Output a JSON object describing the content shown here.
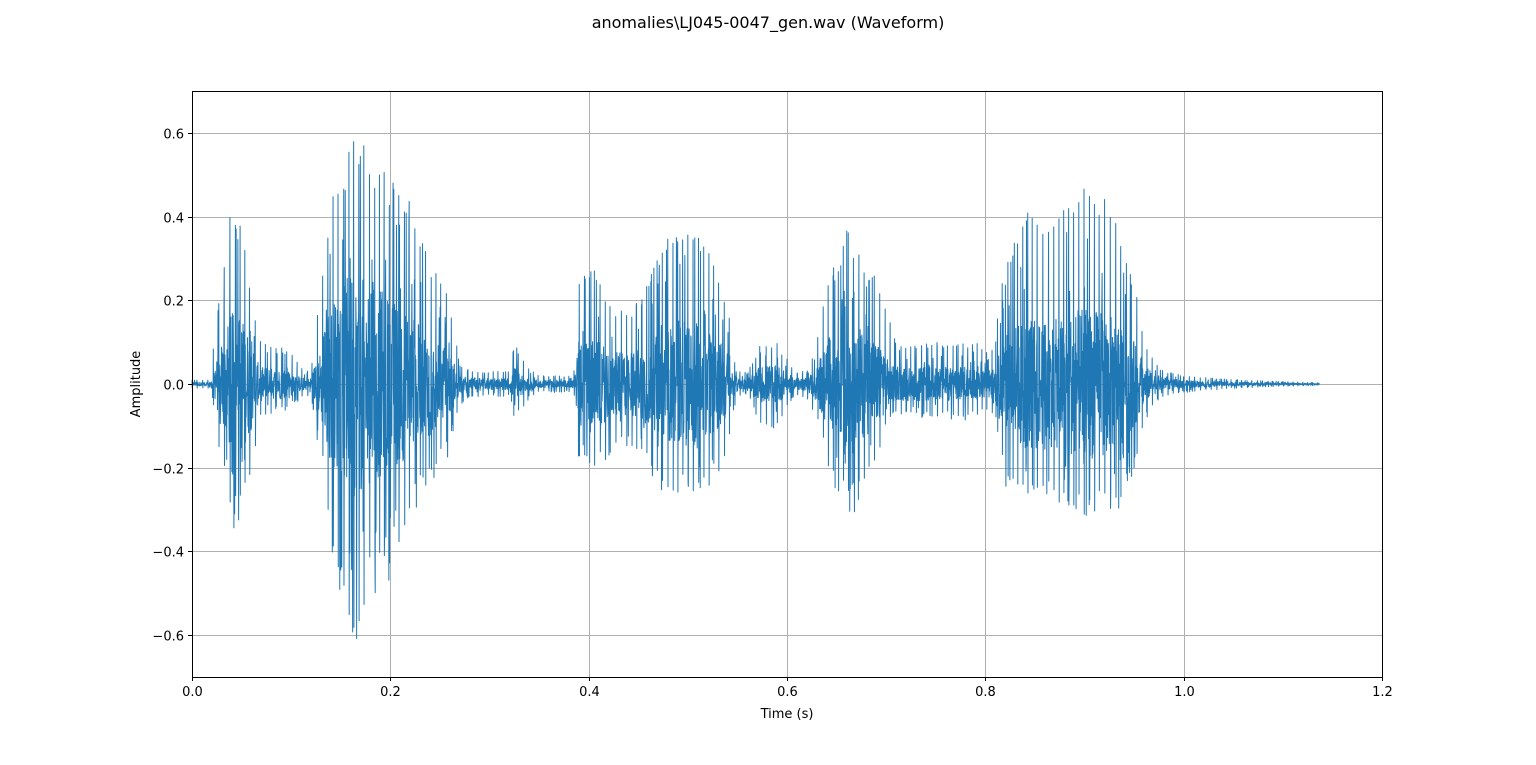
{
  "chart_data": {
    "type": "line",
    "title": "anomalies\\LJ045-0047_gen.wav (Waveform)",
    "xlabel": "Time (s)",
    "ylabel": "Amplitude",
    "xlim": [
      0,
      1.2
    ],
    "ylim": [
      -0.7,
      0.7
    ],
    "xticks": [
      0.0,
      0.2,
      0.4,
      0.6,
      0.8,
      1.0,
      1.2
    ],
    "xtick_labels": [
      "0.0",
      "0.2",
      "0.4",
      "0.6",
      "0.8",
      "1.0",
      "1.2"
    ],
    "yticks": [
      -0.6,
      -0.4,
      -0.2,
      0.0,
      0.2,
      0.4,
      0.6
    ],
    "ytick_labels": [
      "−0.6",
      "−0.4",
      "−0.2",
      "0.0",
      "0.2",
      "0.4",
      "0.6"
    ],
    "grid": true,
    "line_color": "#1f77b4",
    "duration": 1.137,
    "envelope_columns": [
      "time",
      "max",
      "min"
    ],
    "envelope": [
      [
        0.0,
        0.01,
        -0.01
      ],
      [
        0.02,
        0.01,
        -0.01
      ],
      [
        0.021,
        0.08,
        -0.05
      ],
      [
        0.03,
        0.25,
        -0.2
      ],
      [
        0.04,
        0.43,
        -0.33
      ],
      [
        0.05,
        0.42,
        -0.3
      ],
      [
        0.06,
        0.23,
        -0.25
      ],
      [
        0.065,
        0.13,
        -0.12
      ],
      [
        0.07,
        0.1,
        -0.08
      ],
      [
        0.08,
        0.09,
        -0.07
      ],
      [
        0.09,
        0.1,
        -0.06
      ],
      [
        0.1,
        0.08,
        -0.05
      ],
      [
        0.11,
        0.04,
        -0.03
      ],
      [
        0.12,
        0.03,
        -0.03
      ],
      [
        0.125,
        0.15,
        -0.12
      ],
      [
        0.13,
        0.2,
        -0.15
      ],
      [
        0.135,
        0.38,
        -0.32
      ],
      [
        0.14,
        0.45,
        -0.4
      ],
      [
        0.15,
        0.5,
        -0.48
      ],
      [
        0.16,
        0.6,
        -0.61
      ],
      [
        0.17,
        0.59,
        -0.57
      ],
      [
        0.18,
        0.55,
        -0.5
      ],
      [
        0.19,
        0.52,
        -0.48
      ],
      [
        0.2,
        0.49,
        -0.43
      ],
      [
        0.21,
        0.48,
        -0.38
      ],
      [
        0.22,
        0.45,
        -0.32
      ],
      [
        0.23,
        0.35,
        -0.27
      ],
      [
        0.24,
        0.3,
        -0.25
      ],
      [
        0.25,
        0.25,
        -0.17
      ],
      [
        0.26,
        0.2,
        -0.15
      ],
      [
        0.265,
        0.12,
        -0.1
      ],
      [
        0.27,
        0.05,
        -0.05
      ],
      [
        0.28,
        0.03,
        -0.03
      ],
      [
        0.32,
        0.03,
        -0.03
      ],
      [
        0.325,
        0.09,
        -0.09
      ],
      [
        0.33,
        0.08,
        -0.07
      ],
      [
        0.34,
        0.04,
        -0.03
      ],
      [
        0.35,
        0.02,
        -0.02
      ],
      [
        0.385,
        0.02,
        -0.02
      ],
      [
        0.39,
        0.25,
        -0.2
      ],
      [
        0.4,
        0.3,
        -0.22
      ],
      [
        0.41,
        0.25,
        -0.2
      ],
      [
        0.42,
        0.2,
        -0.18
      ],
      [
        0.43,
        0.18,
        -0.15
      ],
      [
        0.44,
        0.18,
        -0.17
      ],
      [
        0.45,
        0.2,
        -0.17
      ],
      [
        0.46,
        0.25,
        -0.2
      ],
      [
        0.47,
        0.3,
        -0.22
      ],
      [
        0.48,
        0.35,
        -0.25
      ],
      [
        0.49,
        0.38,
        -0.26
      ],
      [
        0.5,
        0.4,
        -0.27
      ],
      [
        0.51,
        0.4,
        -0.27
      ],
      [
        0.52,
        0.35,
        -0.25
      ],
      [
        0.53,
        0.28,
        -0.22
      ],
      [
        0.54,
        0.2,
        -0.15
      ],
      [
        0.545,
        0.08,
        -0.07
      ],
      [
        0.55,
        0.03,
        -0.03
      ],
      [
        0.56,
        0.03,
        -0.02
      ],
      [
        0.57,
        0.08,
        -0.1
      ],
      [
        0.58,
        0.1,
        -0.1
      ],
      [
        0.59,
        0.1,
        -0.11
      ],
      [
        0.6,
        0.06,
        -0.05
      ],
      [
        0.61,
        0.03,
        -0.03
      ],
      [
        0.62,
        0.03,
        -0.04
      ],
      [
        0.63,
        0.1,
        -0.08
      ],
      [
        0.64,
        0.27,
        -0.2
      ],
      [
        0.65,
        0.3,
        -0.25
      ],
      [
        0.66,
        0.37,
        -0.3
      ],
      [
        0.67,
        0.33,
        -0.28
      ],
      [
        0.68,
        0.3,
        -0.25
      ],
      [
        0.69,
        0.25,
        -0.2
      ],
      [
        0.7,
        0.18,
        -0.1
      ],
      [
        0.71,
        0.1,
        -0.07
      ],
      [
        0.72,
        0.1,
        -0.08
      ],
      [
        0.79,
        0.1,
        -0.08
      ],
      [
        0.8,
        0.08,
        -0.06
      ],
      [
        0.81,
        0.1,
        -0.08
      ],
      [
        0.815,
        0.25,
        -0.2
      ],
      [
        0.82,
        0.28,
        -0.22
      ],
      [
        0.83,
        0.38,
        -0.25
      ],
      [
        0.84,
        0.42,
        -0.28
      ],
      [
        0.85,
        0.42,
        -0.3
      ],
      [
        0.86,
        0.38,
        -0.27
      ],
      [
        0.87,
        0.4,
        -0.28
      ],
      [
        0.88,
        0.42,
        -0.3
      ],
      [
        0.89,
        0.45,
        -0.32
      ],
      [
        0.9,
        0.47,
        -0.33
      ],
      [
        0.91,
        0.47,
        -0.32
      ],
      [
        0.92,
        0.45,
        -0.3
      ],
      [
        0.93,
        0.4,
        -0.3
      ],
      [
        0.94,
        0.33,
        -0.28
      ],
      [
        0.95,
        0.25,
        -0.2
      ],
      [
        0.96,
        0.1,
        -0.1
      ],
      [
        0.97,
        0.06,
        -0.05
      ],
      [
        0.98,
        0.03,
        -0.03
      ],
      [
        1.0,
        0.02,
        -0.02
      ],
      [
        1.05,
        0.01,
        -0.01
      ],
      [
        1.137,
        0.003,
        -0.003
      ]
    ]
  }
}
